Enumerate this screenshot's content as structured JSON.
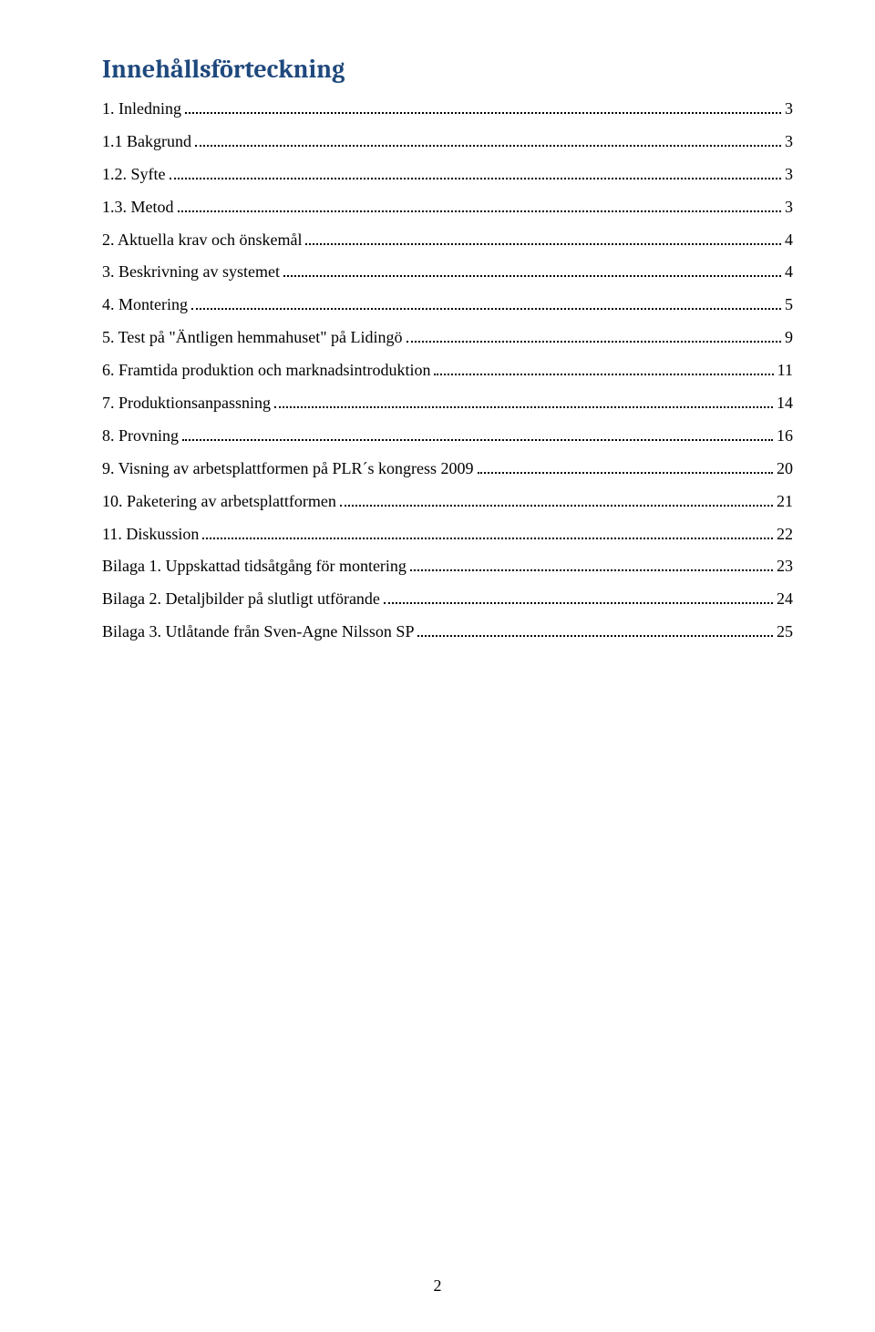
{
  "title": "Innehållsförteckning",
  "title_color": "#1f497d",
  "title_fontsize": 28,
  "body_fontsize": 18,
  "text_color": "#000000",
  "background_color": "#ffffff",
  "page_number": "2",
  "toc": [
    {
      "label": "1. Inledning",
      "page": "3"
    },
    {
      "label": "1.1 Bakgrund",
      "page": "3"
    },
    {
      "label": "1.2. Syfte",
      "page": "3"
    },
    {
      "label": "1.3. Metod",
      "page": "3"
    },
    {
      "label": "2. Aktuella krav och önskemål",
      "page": "4"
    },
    {
      "label": "3. Beskrivning av systemet",
      "page": "4"
    },
    {
      "label": "4. Montering",
      "page": "5"
    },
    {
      "label": "5. Test på \"Äntligen hemmahuset\" på Lidingö",
      "page": "9"
    },
    {
      "label": "6. Framtida produktion och marknadsintroduktion",
      "page": "11"
    },
    {
      "label": "7. Produktionsanpassning",
      "page": "14"
    },
    {
      "label": "8. Provning",
      "page": "16"
    },
    {
      "label": "9. Visning av arbetsplattformen på PLR´s kongress 2009",
      "page": "20"
    },
    {
      "label": "10. Paketering av arbetsplattformen",
      "page": "21"
    },
    {
      "label": "11. Diskussion",
      "page": "22"
    },
    {
      "label": "Bilaga 1. Uppskattad tidsåtgång för montering",
      "page": "23"
    },
    {
      "label": "Bilaga 2. Detaljbilder på slutligt utförande",
      "page": "24"
    },
    {
      "label": "Bilaga 3. Utlåtande från Sven-Agne Nilsson SP",
      "page": "25"
    }
  ]
}
